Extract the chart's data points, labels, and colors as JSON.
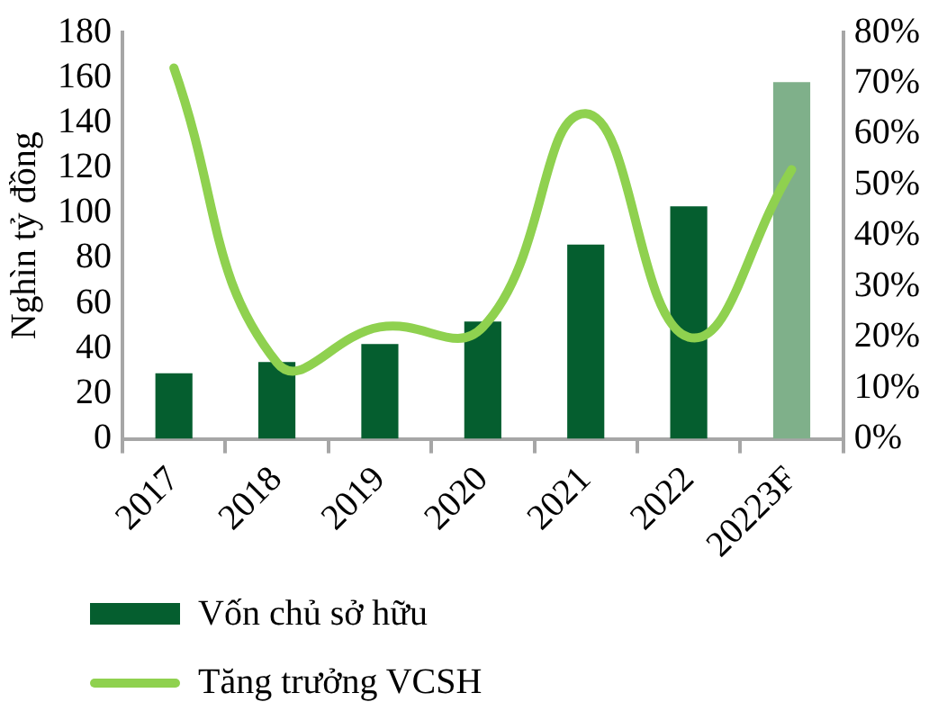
{
  "chart_data": {
    "type": "bar",
    "ylabel": "Nghìn tỷ đồng",
    "categories": [
      "2017",
      "2018",
      "2019",
      "2020",
      "2021",
      "2022",
      "20223F"
    ],
    "series": [
      {
        "name": "Vốn chủ sở hữu",
        "color": "#055e2f",
        "colors": [
          "#055e2f",
          "#055e2f",
          "#055e2f",
          "#055e2f",
          "#055e2f",
          "#055e2f",
          "#7fb08a"
        ],
        "values": [
          29,
          34,
          42,
          52,
          86,
          103,
          158
        ]
      },
      {
        "name": "Tăng trưởng VCSH",
        "type": "line",
        "axis": "y2",
        "color": "#8fd14f",
        "values": [
          73,
          15,
          22,
          22,
          64,
          20,
          53
        ]
      }
    ],
    "ylim": [
      0,
      180
    ],
    "yticks": [
      0,
      20,
      40,
      60,
      80,
      100,
      120,
      140,
      160,
      180
    ],
    "y2lim": [
      0,
      80
    ],
    "y2ticks": [
      {
        "value": 0,
        "label": "0%"
      },
      {
        "value": 10,
        "label": "10%"
      },
      {
        "value": 20,
        "label": "20%"
      },
      {
        "value": 30,
        "label": "30%"
      },
      {
        "value": 40,
        "label": "40%"
      },
      {
        "value": 50,
        "label": "50%"
      },
      {
        "value": 60,
        "label": "60%"
      },
      {
        "value": 70,
        "label": "70%"
      },
      {
        "value": 80,
        "label": "80%"
      }
    ],
    "grid": false,
    "legend": "bottom",
    "marker": "none",
    "line_style": "solid"
  }
}
